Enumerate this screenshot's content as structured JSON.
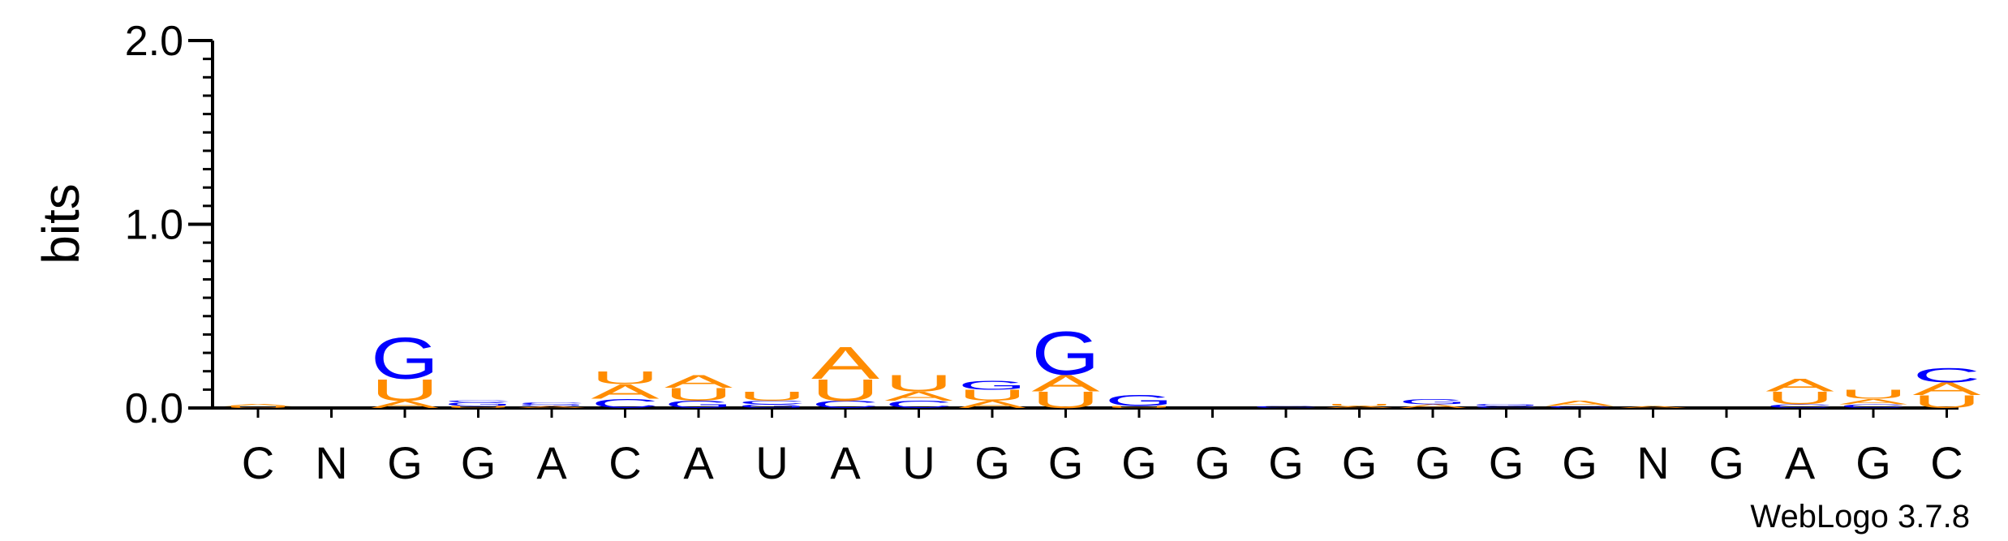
{
  "chart_data": {
    "type": "sequence-logo",
    "ylabel": "bits",
    "ylim": [
      0,
      2.0
    ],
    "yticks": [
      {
        "value": 0.0,
        "label": "0.0"
      },
      {
        "value": 1.0,
        "label": "1.0"
      },
      {
        "value": 2.0,
        "label": "2.0"
      }
    ],
    "yminor_step": 0.1,
    "credit": "WebLogo 3.7.8",
    "colors": {
      "A": "#FF8C00",
      "U": "#FF8C00",
      "G": "#0000FF",
      "C": "#0000FF"
    },
    "positions": [
      {
        "label": "C",
        "stack": [
          [
            "U",
            0.01
          ],
          [
            "A",
            0.01
          ]
        ]
      },
      {
        "label": "N",
        "stack": []
      },
      {
        "label": "G",
        "stack": [
          [
            "A",
            0.04
          ],
          [
            "U",
            0.12
          ],
          [
            "G",
            0.23
          ]
        ]
      },
      {
        "label": "G",
        "stack": [
          [
            "U",
            0.01
          ],
          [
            "G",
            0.02
          ],
          [
            "C",
            0.01
          ]
        ]
      },
      {
        "label": "A",
        "stack": [
          [
            "A",
            0.01
          ],
          [
            "G",
            0.01
          ],
          [
            "C",
            0.01
          ]
        ]
      },
      {
        "label": "C",
        "stack": [
          [
            "C",
            0.05
          ],
          [
            "A",
            0.08
          ],
          [
            "U",
            0.07
          ]
        ]
      },
      {
        "label": "A",
        "stack": [
          [
            "G",
            0.04
          ],
          [
            "U",
            0.07
          ],
          [
            "A",
            0.07
          ]
        ]
      },
      {
        "label": "U",
        "stack": [
          [
            "G",
            0.02
          ],
          [
            "C",
            0.02
          ],
          [
            "U",
            0.05
          ]
        ]
      },
      {
        "label": "A",
        "stack": [
          [
            "C",
            0.04
          ],
          [
            "U",
            0.12
          ],
          [
            "A",
            0.18
          ]
        ]
      },
      {
        "label": "U",
        "stack": [
          [
            "C",
            0.04
          ],
          [
            "A",
            0.05
          ],
          [
            "U",
            0.09
          ]
        ]
      },
      {
        "label": "G",
        "stack": [
          [
            "A",
            0.04
          ],
          [
            "U",
            0.06
          ],
          [
            "G",
            0.05
          ]
        ]
      },
      {
        "label": "G",
        "stack": [
          [
            "U",
            0.09
          ],
          [
            "A",
            0.09
          ],
          [
            "G",
            0.24
          ]
        ]
      },
      {
        "label": "G",
        "stack": [
          [
            "U",
            0.01
          ],
          [
            "G",
            0.06
          ]
        ]
      },
      {
        "label": "G",
        "stack": []
      },
      {
        "label": "G",
        "stack": [
          [
            "C",
            0.01
          ]
        ]
      },
      {
        "label": "G",
        "stack": [
          [
            "A",
            0.01
          ],
          [
            "U",
            0.01
          ]
        ]
      },
      {
        "label": "G",
        "stack": [
          [
            "A",
            0.02
          ],
          [
            "G",
            0.03
          ]
        ]
      },
      {
        "label": "G",
        "stack": [
          [
            "C",
            0.01
          ],
          [
            "G",
            0.01
          ]
        ]
      },
      {
        "label": "G",
        "stack": [
          [
            "C",
            0.01
          ],
          [
            "A",
            0.03
          ]
        ]
      },
      {
        "label": "N",
        "stack": [
          [
            "A",
            0.01
          ]
        ]
      },
      {
        "label": "G",
        "stack": []
      },
      {
        "label": "A",
        "stack": [
          [
            "C",
            0.02
          ],
          [
            "U",
            0.07
          ],
          [
            "A",
            0.07
          ]
        ]
      },
      {
        "label": "G",
        "stack": [
          [
            "C",
            0.02
          ],
          [
            "A",
            0.03
          ],
          [
            "U",
            0.05
          ]
        ]
      },
      {
        "label": "C",
        "stack": [
          [
            "U",
            0.07
          ],
          [
            "A",
            0.07
          ],
          [
            "C",
            0.08
          ]
        ]
      }
    ]
  }
}
